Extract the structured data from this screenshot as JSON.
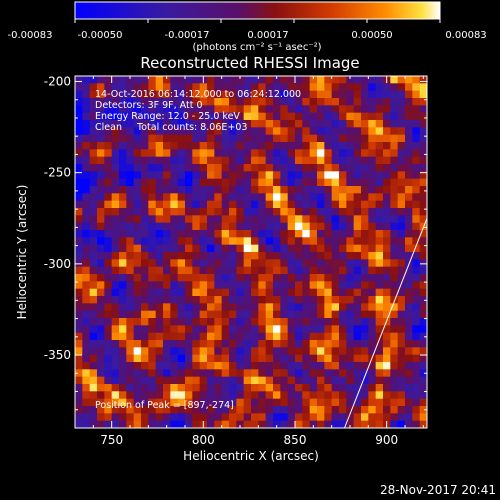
{
  "colorbar": {
    "tick_labels": [
      "-0.00083",
      "-0.00050",
      "-0.00017",
      "0.00017",
      "0.00050",
      "0.00083"
    ],
    "range": [
      -0.00083,
      0.00083
    ],
    "unit_label": "(photons cm⁻² s⁻¹ asec⁻²)"
  },
  "annotations": {
    "line1": "14-Oct-2016 06:14:12.000 to 06:24:12.000",
    "line2": "Detectors: 3F 9F, Att 0",
    "line3": "Energy Range: 12.0 - 25.0 keV",
    "line4": "Clean     Total counts: 8.06E+03",
    "peak": "Position of Peak = [897,-274]"
  },
  "footer_timestamp": "28-Nov-2017 20:41",
  "chart_data": {
    "type": "heatmap",
    "title": "Reconstructed RHESSI Image",
    "xlabel": "Heliocentric X (arcsec)",
    "ylabel": "Heliocentric Y (arcsec)",
    "xlim": [
      730,
      922
    ],
    "ylim": [
      -390,
      -197
    ],
    "xticks": [
      750,
      800,
      850,
      900
    ],
    "yticks": [
      -200,
      -250,
      -300,
      -350
    ],
    "xtick_labels": [
      "750",
      "800",
      "850",
      "900"
    ],
    "ytick_labels": [
      "-200",
      "-250",
      "-300",
      "-350"
    ],
    "limb_line": [
      [
        877,
        -390
      ],
      [
        922,
        -275
      ]
    ],
    "colormap": [
      "#0000ff",
      "#3a1aa0",
      "#5a0f6a",
      "#8a1010",
      "#d23a00",
      "#ff8c00",
      "#ffe040",
      "#ffffff"
    ]
  }
}
